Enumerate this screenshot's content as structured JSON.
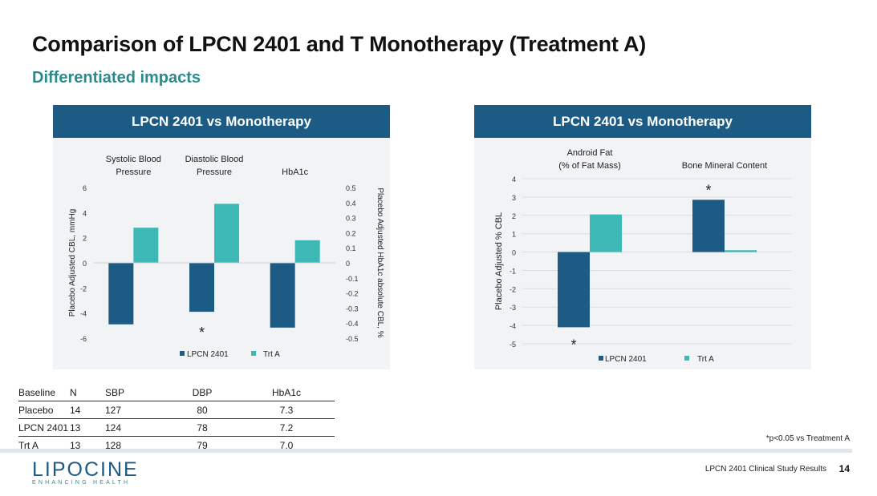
{
  "title": "Comparison of LPCN 2401 and T Monotherapy (Treatment A)",
  "subtitle": "Differentiated impacts",
  "colors": {
    "series1": "#1c5b84",
    "series2": "#3db8b5",
    "header": "#1c5b84",
    "accent": "#2a8a8c"
  },
  "chart_data": [
    {
      "type": "bar",
      "panel_title": "LPCN 2401 vs Monotherapy",
      "categories": [
        [
          "Systolic Blood",
          "Pressure"
        ],
        [
          "Diastolic Blood",
          "Pressure"
        ],
        [
          "HbA1c"
        ]
      ],
      "series": [
        {
          "name": "LPCN 2401",
          "values": [
            -4.9,
            -3.9,
            -0.43
          ]
        },
        {
          "name": "Trt A",
          "values": [
            2.8,
            4.7,
            0.15
          ]
        }
      ],
      "ylabel": "Placebo Adjusted CBL, mmHg",
      "ylabel_right": "Placebo Adjusted HbA1c absolute CBL, %",
      "ylim": [
        -6,
        6
      ],
      "yticks": [
        "6",
        "4",
        "2",
        "0",
        "-2",
        "-4",
        "-6"
      ],
      "ylim_right": [
        -0.5,
        0.5
      ],
      "yticks_right": [
        "0.5",
        "0.4",
        "0.3",
        "0.2",
        "0.1",
        "0",
        "-0.1",
        "-0.2",
        "-0.3",
        "-0.4",
        "-0.5"
      ],
      "annotation": "*",
      "legend": [
        "LPCN 2401",
        "Trt A"
      ]
    },
    {
      "type": "bar",
      "panel_title": "LPCN 2401 vs Monotherapy",
      "categories": [
        [
          "Android Fat",
          "(% of Fat Mass)"
        ],
        [
          "Bone Mineral Content"
        ]
      ],
      "series": [
        {
          "name": "LPCN 2401",
          "values": [
            -4.1,
            2.85
          ]
        },
        {
          "name": "Trt A",
          "values": [
            2.05,
            0.1
          ]
        }
      ],
      "ylabel": "Placebo Adjusted % CBL",
      "ylim": [
        -5,
        4
      ],
      "yticks": [
        "4",
        "3",
        "2",
        "1",
        "0",
        "-1",
        "-2",
        "-3",
        "-4",
        "-5"
      ],
      "annotation": "*",
      "legend": [
        "LPCN 2401",
        "Trt A"
      ]
    }
  ],
  "baseline_table": {
    "headers": [
      "Baseline",
      "N",
      "SBP",
      "DBP",
      "HbA1c"
    ],
    "rows": [
      [
        "Placebo",
        "14",
        "127",
        "80",
        "7.3"
      ],
      [
        "LPCN 2401",
        "13",
        "124",
        "78",
        "7.2"
      ],
      [
        "Trt A",
        "13",
        "128",
        "79",
        "7.0"
      ]
    ]
  },
  "footnote": "*p<0.05 vs Treatment A",
  "logo": {
    "name": "LIPOCINE",
    "tagline": "ENHANCING HEALTH"
  },
  "footer": {
    "text": "LPCN 2401 Clinical Study Results",
    "page": "14"
  }
}
